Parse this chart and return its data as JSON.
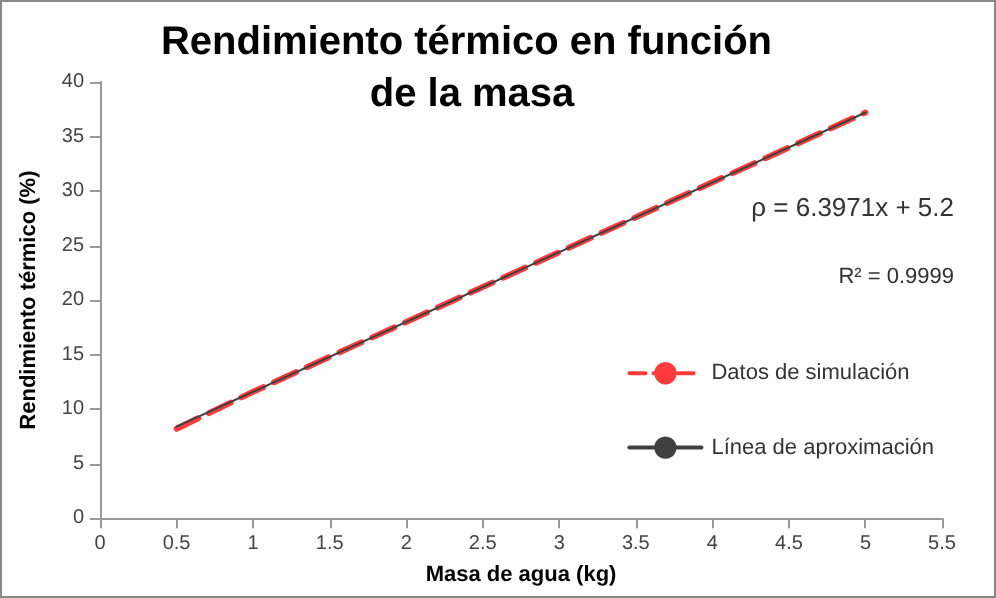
{
  "chart_data": {
    "type": "line",
    "title": "Rendimiento térmico en función de la masa",
    "xlabel": "Masa de agua (kg)",
    "ylabel": "Rendimiento térmico (%)",
    "annotations": [
      "ρ = 6.3971x + 5.2",
      "R² = 0.9999"
    ],
    "xlim": [
      0,
      5.5
    ],
    "xticks": [
      0,
      0.5,
      1,
      1.5,
      2,
      2.5,
      3,
      3.5,
      4,
      4.5,
      5,
      5.5
    ],
    "ylim": [
      0,
      40
    ],
    "yticks": [
      0,
      5,
      10,
      15,
      20,
      25,
      30,
      35,
      40
    ],
    "grid": false,
    "legend": "right",
    "marker": "none",
    "series": [
      {
        "name": "Datos de simulación",
        "color": "#ff3b3b",
        "line_style": "dashed",
        "x": [
          0.5,
          1,
          1.5,
          2,
          2.5,
          3,
          3.5,
          4,
          4.5,
          5
        ],
        "values": [
          8.2,
          11.6,
          14.8,
          18.0,
          21.2,
          24.4,
          27.6,
          30.8,
          34.0,
          37.2
        ]
      },
      {
        "name": "Línea de aproximación",
        "color": "#404040",
        "line_style": "solid",
        "x": [
          0.5,
          5
        ],
        "values": [
          8.4,
          37.2
        ]
      }
    ]
  }
}
